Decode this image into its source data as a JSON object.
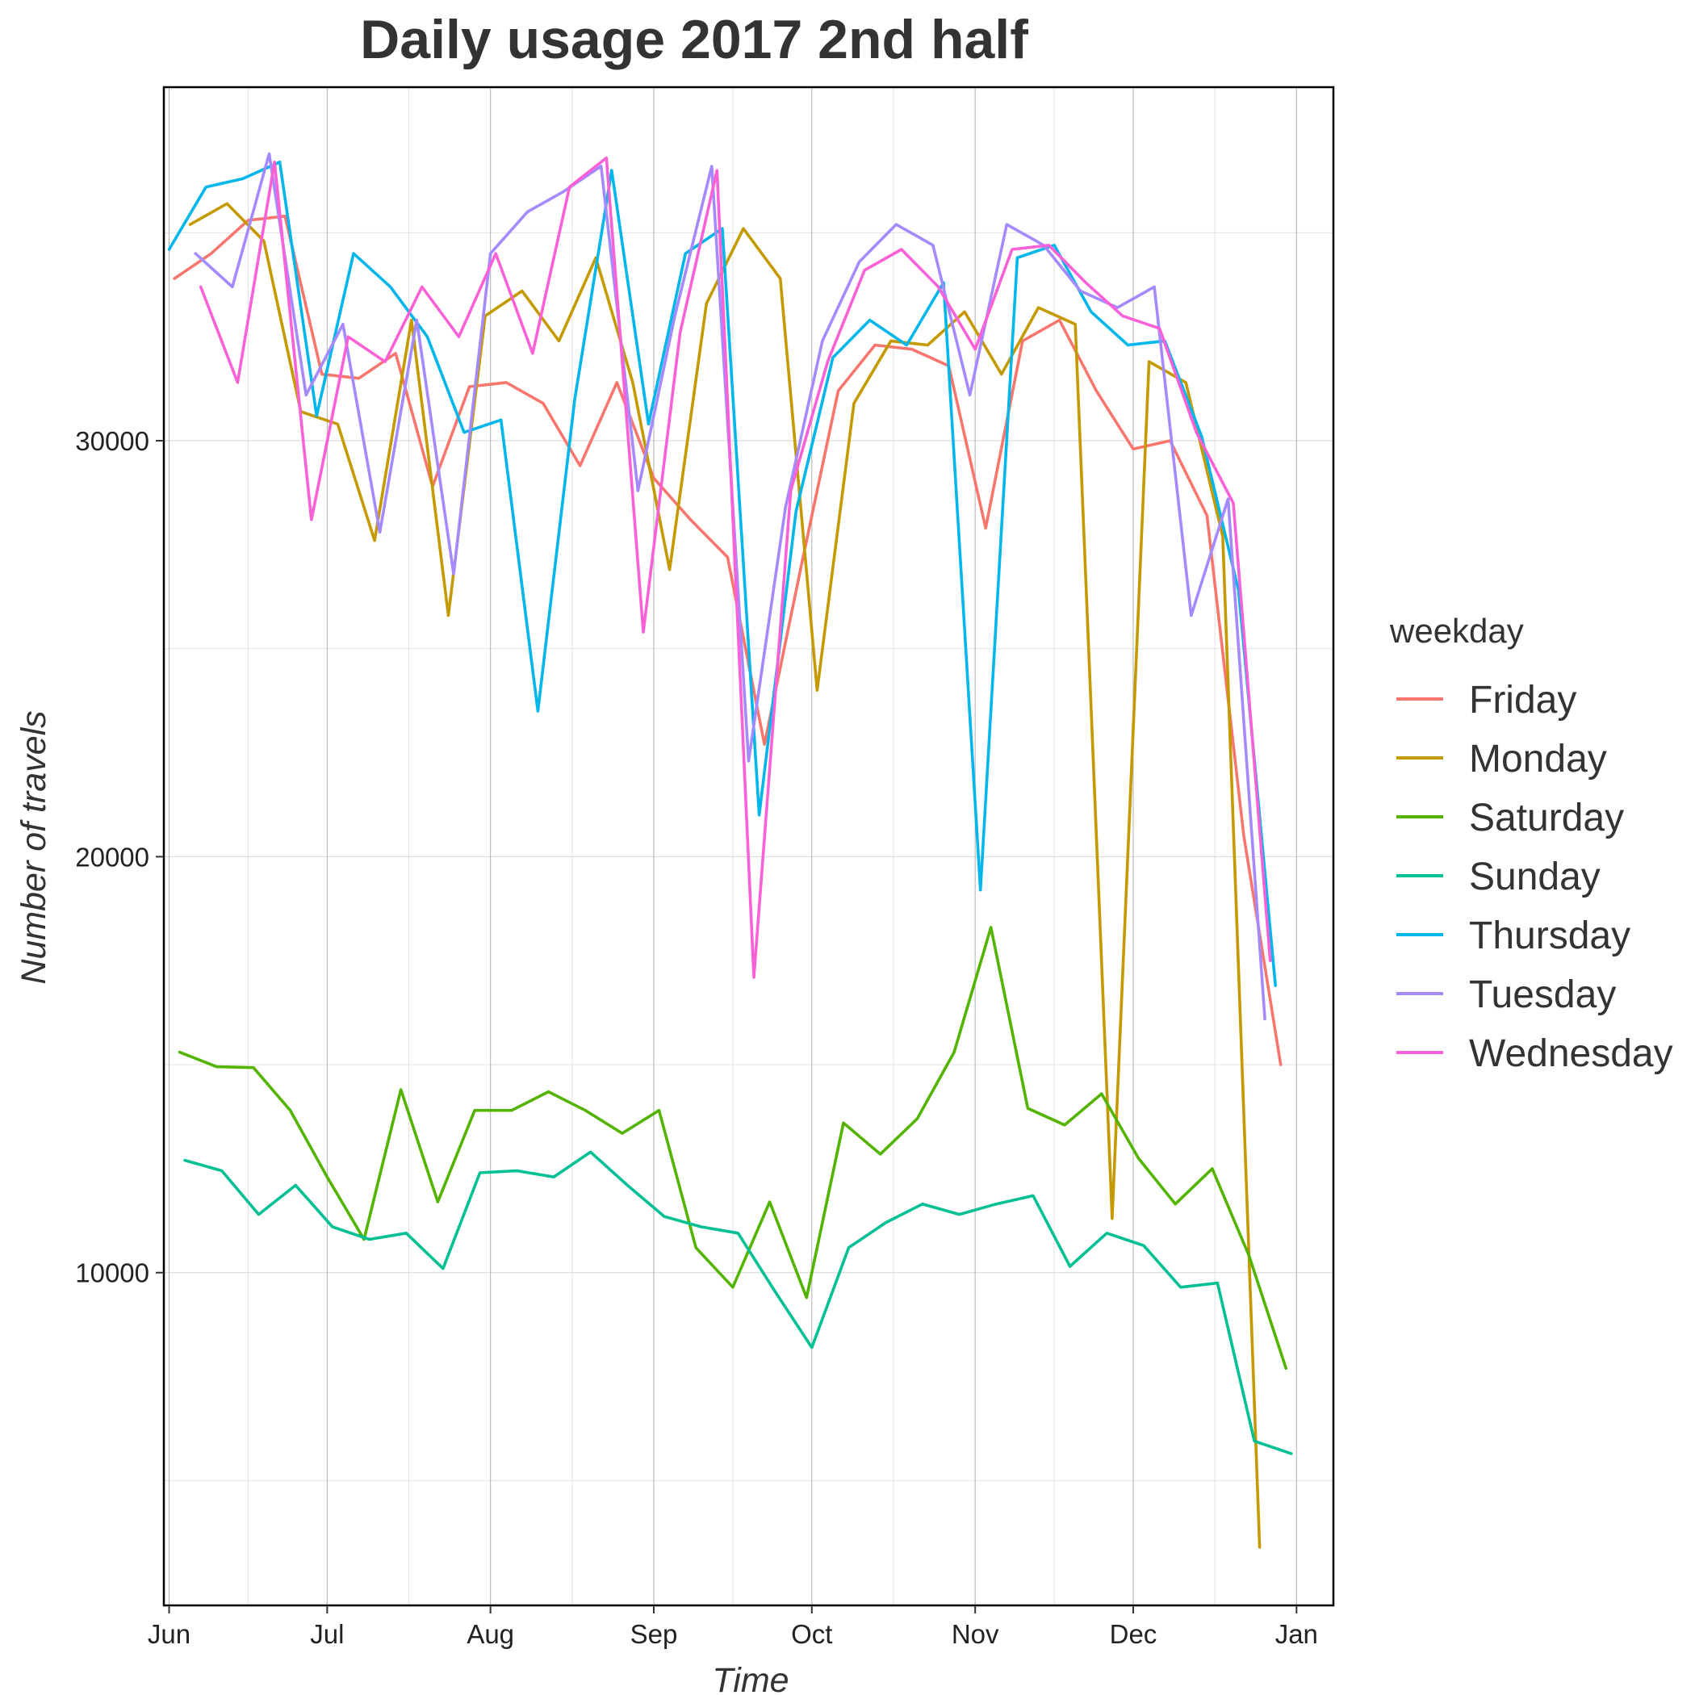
{
  "chart_data": {
    "type": "line",
    "title": "Daily usage 2017 2nd half",
    "xlabel": "Time",
    "ylabel": "Number of travels",
    "legend_title": "weekday",
    "legend_position": "right",
    "grid": true,
    "xlim": [
      "2017-05-31",
      "2018-01-08"
    ],
    "ylim": [
      2000,
      38500
    ],
    "x_ticks": [
      {
        "date": "2017-06-01",
        "label": "Jun"
      },
      {
        "date": "2017-07-01",
        "label": "Jul"
      },
      {
        "date": "2017-08-01",
        "label": "Aug"
      },
      {
        "date": "2017-09-01",
        "label": "Sep"
      },
      {
        "date": "2017-10-01",
        "label": "Oct"
      },
      {
        "date": "2017-11-01",
        "label": "Nov"
      },
      {
        "date": "2017-12-01",
        "label": "Dec"
      },
      {
        "date": "2018-01-01",
        "label": "Jan"
      }
    ],
    "y_ticks": [
      10000,
      20000,
      30000
    ],
    "y_minor": [
      5000,
      15000,
      25000,
      35000
    ],
    "series": [
      {
        "name": "Friday",
        "color": "#F8766D",
        "x": [
          "2017-06-02",
          "2017-06-09",
          "2017-06-16",
          "2017-06-23",
          "2017-06-30",
          "2017-07-07",
          "2017-07-14",
          "2017-07-21",
          "2017-07-28",
          "2017-08-04",
          "2017-08-11",
          "2017-08-18",
          "2017-08-25",
          "2017-09-01",
          "2017-09-08",
          "2017-09-15",
          "2017-09-22",
          "2017-09-29",
          "2017-10-06",
          "2017-10-13",
          "2017-10-20",
          "2017-10-27",
          "2017-11-03",
          "2017-11-10",
          "2017-11-17",
          "2017-11-24",
          "2017-12-01",
          "2017-12-08",
          "2017-12-15",
          "2017-12-22",
          "2017-12-29"
        ],
        "y": [
          33900,
          34500,
          35300,
          35400,
          31600,
          31500,
          32100,
          28900,
          31300,
          31400,
          30900,
          29400,
          31400,
          29100,
          28100,
          27200,
          22700,
          27000,
          31200,
          32300,
          32200,
          31800,
          27900,
          32400,
          32900,
          31200,
          29800,
          30000,
          28200,
          20500,
          15000
        ]
      },
      {
        "name": "Monday",
        "color": "#C49A00",
        "x": [
          "2017-06-05",
          "2017-06-12",
          "2017-06-19",
          "2017-06-26",
          "2017-07-03",
          "2017-07-10",
          "2017-07-17",
          "2017-07-24",
          "2017-07-31",
          "2017-08-07",
          "2017-08-14",
          "2017-08-21",
          "2017-08-28",
          "2017-09-04",
          "2017-09-11",
          "2017-09-18",
          "2017-09-25",
          "2017-10-02",
          "2017-10-09",
          "2017-10-16",
          "2017-10-23",
          "2017-10-30",
          "2017-11-06",
          "2017-11-13",
          "2017-11-20",
          "2017-11-27",
          "2017-12-04",
          "2017-12-11",
          "2017-12-18",
          "2017-12-25"
        ],
        "y": [
          35200,
          35700,
          34800,
          30700,
          30400,
          27600,
          32900,
          25800,
          33000,
          33600,
          32400,
          34400,
          31400,
          26900,
          33300,
          35100,
          33900,
          24000,
          30900,
          32400,
          32300,
          33100,
          31600,
          33200,
          32800,
          11300,
          31900,
          31400,
          27700,
          3400
        ]
      },
      {
        "name": "Saturday",
        "color": "#53B400",
        "x": [
          "2017-06-03",
          "2017-06-10",
          "2017-06-17",
          "2017-06-24",
          "2017-07-01",
          "2017-07-08",
          "2017-07-15",
          "2017-07-22",
          "2017-07-29",
          "2017-08-05",
          "2017-08-12",
          "2017-08-19",
          "2017-08-26",
          "2017-09-02",
          "2017-09-09",
          "2017-09-16",
          "2017-09-23",
          "2017-09-30",
          "2017-10-07",
          "2017-10-14",
          "2017-10-21",
          "2017-10-28",
          "2017-11-04",
          "2017-11-11",
          "2017-11-18",
          "2017-11-25",
          "2017-12-02",
          "2017-12-09",
          "2017-12-16",
          "2017-12-23",
          "2017-12-30"
        ],
        "y": [
          15300,
          14950,
          14930,
          13900,
          12300,
          10800,
          14400,
          11700,
          13900,
          13900,
          14350,
          13900,
          13350,
          13900,
          10600,
          9650,
          11700,
          9400,
          13600,
          12850,
          13700,
          15300,
          18300,
          13950,
          13550,
          14300,
          12750,
          11650,
          12500,
          10400,
          7700
        ]
      },
      {
        "name": "Sunday",
        "color": "#00C094",
        "x": [
          "2017-06-04",
          "2017-06-11",
          "2017-06-18",
          "2017-06-25",
          "2017-07-02",
          "2017-07-09",
          "2017-07-16",
          "2017-07-23",
          "2017-07-30",
          "2017-08-06",
          "2017-08-13",
          "2017-08-20",
          "2017-08-27",
          "2017-09-03",
          "2017-09-10",
          "2017-09-17",
          "2017-09-24",
          "2017-10-01",
          "2017-10-08",
          "2017-10-15",
          "2017-10-22",
          "2017-10-29",
          "2017-11-05",
          "2017-11-12",
          "2017-11-19",
          "2017-11-26",
          "2017-12-03",
          "2017-12-10",
          "2017-12-17",
          "2017-12-24",
          "2017-12-31"
        ],
        "y": [
          12700,
          12450,
          11400,
          12100,
          11100,
          10800,
          10950,
          10100,
          12400,
          12450,
          12300,
          12900,
          12100,
          11350,
          11100,
          10950,
          9550,
          8200,
          10600,
          11200,
          11650,
          11400,
          11650,
          11850,
          10150,
          10950,
          10650,
          9650,
          9750,
          5950,
          5650
        ]
      },
      {
        "name": "Thursday",
        "color": "#00B6EB",
        "x": [
          "2017-06-01",
          "2017-06-08",
          "2017-06-15",
          "2017-06-22",
          "2017-06-29",
          "2017-07-06",
          "2017-07-13",
          "2017-07-20",
          "2017-07-27",
          "2017-08-03",
          "2017-08-10",
          "2017-08-17",
          "2017-08-24",
          "2017-08-31",
          "2017-09-07",
          "2017-09-14",
          "2017-09-21",
          "2017-09-28",
          "2017-10-05",
          "2017-10-12",
          "2017-10-19",
          "2017-10-26",
          "2017-11-02",
          "2017-11-09",
          "2017-11-16",
          "2017-11-23",
          "2017-11-30",
          "2017-12-07",
          "2017-12-14",
          "2017-12-21",
          "2017-12-28"
        ],
        "y": [
          34600,
          36100,
          36300,
          36700,
          30600,
          34500,
          33700,
          32500,
          30200,
          30500,
          23500,
          31000,
          36500,
          30400,
          34500,
          35100,
          21000,
          28300,
          32000,
          32900,
          32300,
          33800,
          19200,
          34400,
          34700,
          33100,
          32300,
          32400,
          30100,
          26400,
          16900
        ]
      },
      {
        "name": "Tuesday",
        "color": "#A58AFF",
        "x": [
          "2017-06-06",
          "2017-06-13",
          "2017-06-20",
          "2017-06-27",
          "2017-07-04",
          "2017-07-11",
          "2017-07-18",
          "2017-07-25",
          "2017-08-01",
          "2017-08-08",
          "2017-08-15",
          "2017-08-22",
          "2017-08-29",
          "2017-09-05",
          "2017-09-12",
          "2017-09-19",
          "2017-09-26",
          "2017-10-03",
          "2017-10-10",
          "2017-10-17",
          "2017-10-24",
          "2017-10-31",
          "2017-11-07",
          "2017-11-14",
          "2017-11-21",
          "2017-11-28",
          "2017-12-05",
          "2017-12-12",
          "2017-12-19",
          "2017-12-26"
        ],
        "y": [
          34500,
          33700,
          36900,
          31100,
          32800,
          27800,
          32900,
          26800,
          34500,
          35500,
          36000,
          36600,
          28800,
          33000,
          36600,
          22300,
          28400,
          32400,
          34300,
          35200,
          34700,
          31100,
          35200,
          34700,
          33600,
          33200,
          33700,
          25800,
          28600,
          16100
        ]
      },
      {
        "name": "Wednesday",
        "color": "#FB61D7",
        "x": [
          "2017-06-07",
          "2017-06-14",
          "2017-06-21",
          "2017-06-28",
          "2017-07-05",
          "2017-07-12",
          "2017-07-19",
          "2017-07-26",
          "2017-08-02",
          "2017-08-09",
          "2017-08-16",
          "2017-08-23",
          "2017-08-30",
          "2017-09-06",
          "2017-09-13",
          "2017-09-20",
          "2017-09-27",
          "2017-10-04",
          "2017-10-11",
          "2017-10-18",
          "2017-10-25",
          "2017-11-01",
          "2017-11-08",
          "2017-11-15",
          "2017-11-22",
          "2017-11-29",
          "2017-12-06",
          "2017-12-13",
          "2017-12-20",
          "2017-12-27"
        ],
        "y": [
          33700,
          31400,
          36700,
          28100,
          32500,
          31900,
          33700,
          32500,
          34500,
          32100,
          36100,
          36800,
          25400,
          32600,
          36500,
          17100,
          28800,
          31900,
          34100,
          34600,
          33700,
          32200,
          34600,
          34700,
          33800,
          33000,
          32700,
          30200,
          28500,
          17500
        ]
      }
    ]
  }
}
